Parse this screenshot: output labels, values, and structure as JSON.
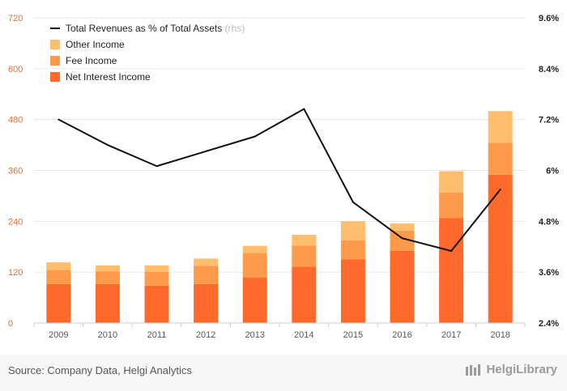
{
  "chart_data": {
    "type": "bar",
    "stacked": true,
    "categories": [
      "2009",
      "2010",
      "2011",
      "2012",
      "2013",
      "2014",
      "2015",
      "2016",
      "2017",
      "2018"
    ],
    "series": [
      {
        "name": "Net Interest Income",
        "color": "#ff6a2b",
        "axis": "left",
        "values": [
          92,
          92,
          88,
          92,
          107,
          133,
          150,
          170,
          248,
          350
        ]
      },
      {
        "name": "Fee Income",
        "color": "#ff9a4a",
        "axis": "left",
        "values": [
          33,
          30,
          33,
          43,
          58,
          50,
          45,
          48,
          60,
          75
        ]
      },
      {
        "name": "Other Income",
        "color": "#ffbd6e",
        "axis": "left",
        "values": [
          18,
          14,
          15,
          17,
          17,
          25,
          45,
          17,
          50,
          75
        ]
      }
    ],
    "line_series": {
      "name": "Total Revenues as % of Total Assets",
      "name_suffix": "(rhs)",
      "color": "#111111",
      "axis": "right",
      "values": [
        7.2,
        6.6,
        6.1,
        6.45,
        6.8,
        7.45,
        5.25,
        4.4,
        4.1,
        5.55
      ]
    },
    "y_left": {
      "min": 0,
      "max": 720,
      "ticks": [
        "0",
        "120",
        "240",
        "360",
        "480",
        "600",
        "720"
      ]
    },
    "y_right": {
      "min": 2.4,
      "max": 9.6,
      "ticks": [
        "2.4%",
        "3.6%",
        "4.8%",
        "6%",
        "7.2%",
        "8.4%",
        "9.6%"
      ]
    },
    "grid": true,
    "legend_position": "top-left"
  },
  "footer": {
    "source": "Source: Company Data, Helgi Analytics",
    "brand": "HelgiLibrary"
  }
}
